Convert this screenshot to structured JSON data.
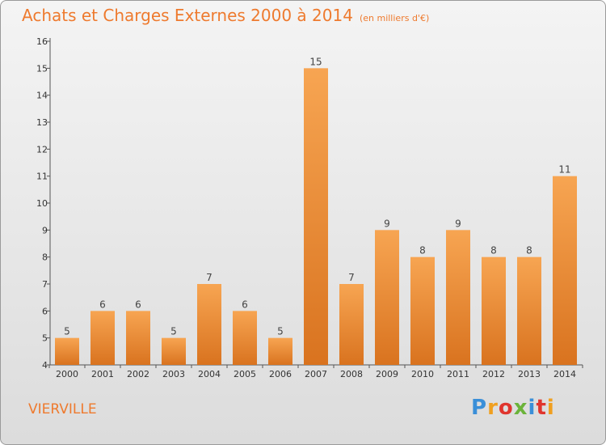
{
  "title": "Achats et Charges Externes 2000 à 2014",
  "subtitle": "(en milliers d'€)",
  "commune": "VIERVILLE",
  "logo": {
    "text": "Proxiti"
  },
  "chart_data": {
    "type": "bar",
    "title": "Achats et Charges Externes 2000 à 2014",
    "subtitle": "(en milliers d'€)",
    "categories": [
      "2000",
      "2001",
      "2002",
      "2003",
      "2004",
      "2005",
      "2006",
      "2007",
      "2008",
      "2009",
      "2010",
      "2011",
      "2012",
      "2013",
      "2014"
    ],
    "values": [
      5,
      6,
      6,
      5,
      7,
      6,
      5,
      15,
      7,
      9,
      8,
      9,
      8,
      8,
      11
    ],
    "ylim": [
      4,
      16
    ],
    "yticks": [
      4,
      5,
      6,
      7,
      8,
      9,
      10,
      11,
      12,
      13,
      14,
      15,
      16
    ],
    "grid": false,
    "legend": "none",
    "bar_color": "#f39a44",
    "bar_color_dark": "#d9731f"
  }
}
